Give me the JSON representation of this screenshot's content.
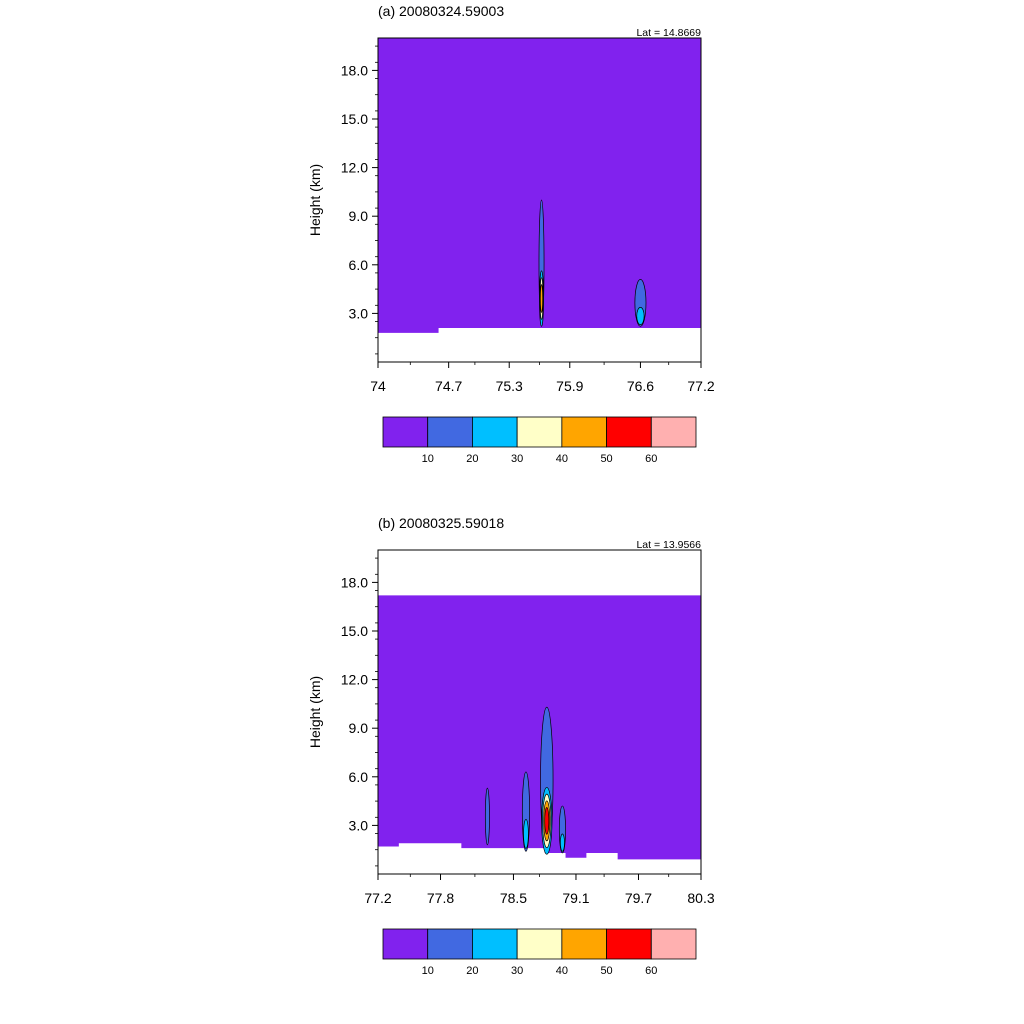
{
  "colors": {
    "levels": [
      "#8122EE",
      "#4169E1",
      "#00BFFF",
      "#FFFFC8",
      "#FFA500",
      "#FF0000",
      "#FFB0B0"
    ],
    "no_data": "#FFFFFF",
    "contour_line": "#000000"
  },
  "colorbar": {
    "labels": [
      "10",
      "20",
      "30",
      "40",
      "50",
      "60"
    ]
  },
  "chart_data": [
    {
      "type": "heatmap",
      "title": "(a) 20080324.59003",
      "annotation": "Lat =  14.8669",
      "xlabel": "",
      "ylabel": "Height (km)",
      "xlim": [
        74,
        77.2
      ],
      "ylim": [
        0,
        20
      ],
      "x_ticks": [
        "74",
        "74.7",
        "75.3",
        "75.9",
        "76.6",
        "77.2"
      ],
      "y_ticks": [
        "3.0",
        "6.0",
        "9.0",
        "12.0",
        "15.0",
        "18.0"
      ],
      "data_top_km": 20,
      "terrain": [
        [
          74.0,
          1.8
        ],
        [
          74.6,
          1.8
        ],
        [
          74.65,
          2.1
        ],
        [
          75.8,
          2.1
        ],
        [
          75.9,
          2.1
        ],
        [
          76.9,
          2.1
        ],
        [
          77.2,
          2.1
        ]
      ],
      "cells": [
        {
          "center_x": 75.62,
          "base_km": 2.2,
          "top_km": 10.0,
          "width_deg": 0.05,
          "max_dbz_bin": 4
        },
        {
          "center_x": 76.6,
          "base_km": 2.2,
          "top_km": 5.1,
          "width_deg": 0.11,
          "max_dbz_bin": 2
        }
      ]
    },
    {
      "type": "heatmap",
      "title": "(b) 20080325.59018",
      "annotation": "Lat =  13.9566",
      "xlabel": "",
      "ylabel": "Height (km)",
      "xlim": [
        77.2,
        80.3
      ],
      "ylim": [
        0,
        20
      ],
      "x_ticks": [
        "77.2",
        "77.8",
        "78.5",
        "79.1",
        "79.7",
        "80.3"
      ],
      "y_ticks": [
        "3.0",
        "6.0",
        "9.0",
        "12.0",
        "15.0",
        "18.0"
      ],
      "data_top_km": 17.2,
      "terrain": [
        [
          77.2,
          1.7
        ],
        [
          77.4,
          1.7
        ],
        [
          77.45,
          1.9
        ],
        [
          78.0,
          1.9
        ],
        [
          78.05,
          1.6
        ],
        [
          78.8,
          1.6
        ],
        [
          79.0,
          1.3
        ],
        [
          79.2,
          1.0
        ],
        [
          79.5,
          1.3
        ],
        [
          79.6,
          0.9
        ],
        [
          80.3,
          0.9
        ]
      ],
      "cells": [
        {
          "center_x": 78.25,
          "base_km": 1.8,
          "top_km": 5.3,
          "width_deg": 0.04,
          "max_dbz_bin": 1
        },
        {
          "center_x": 78.62,
          "base_km": 1.4,
          "top_km": 6.3,
          "width_deg": 0.07,
          "max_dbz_bin": 2
        },
        {
          "center_x": 78.82,
          "base_km": 1.3,
          "top_km": 10.3,
          "width_deg": 0.12,
          "max_dbz_bin": 5
        },
        {
          "center_x": 78.97,
          "base_km": 1.3,
          "top_km": 4.2,
          "width_deg": 0.06,
          "max_dbz_bin": 2
        }
      ]
    }
  ]
}
